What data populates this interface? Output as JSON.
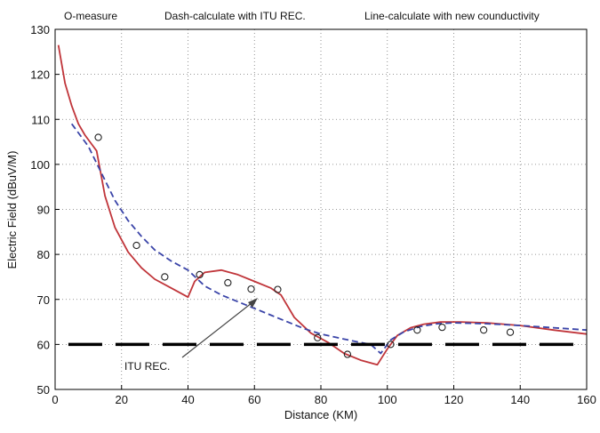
{
  "chart_data": {
    "type": "line",
    "header_notes": [
      "O-measure",
      "Dash-calculate with ITU REC.",
      "Line-calculate with new counductivity"
    ],
    "xlabel": "Distance (KM)",
    "ylabel": "Electric Field (dBuV/M)",
    "xlim": [
      0,
      160
    ],
    "ylim": [
      50,
      130
    ],
    "xticks": [
      0,
      20,
      40,
      60,
      80,
      100,
      120,
      140,
      160
    ],
    "yticks": [
      50,
      60,
      70,
      80,
      90,
      100,
      110,
      120,
      130
    ],
    "grid": "dotted",
    "annotation": {
      "text": "ITU REC.",
      "points_to": [
        77,
        61
      ]
    },
    "series": [
      {
        "style": "solid",
        "color": "#c0353a",
        "x": [
          1,
          3,
          5,
          7,
          9,
          11,
          12.5,
          15,
          18,
          22,
          26,
          30,
          35,
          40,
          42,
          45,
          50,
          55,
          60,
          65,
          68,
          72,
          77,
          82,
          87,
          92,
          97,
          100,
          103,
          107,
          111,
          116,
          122,
          130,
          140,
          150,
          160
        ],
        "y": [
          126.5,
          118,
          113,
          109,
          106.5,
          104.5,
          103,
          93,
          86,
          80.5,
          77,
          74.5,
          72.5,
          70.5,
          74,
          76,
          76.5,
          75.5,
          74,
          72.5,
          71,
          66,
          62.5,
          60.5,
          58,
          56.5,
          55.5,
          59,
          62,
          63.7,
          64.5,
          65,
          65,
          64.8,
          64.2,
          63.2,
          62.3
        ]
      },
      {
        "style": "dashed",
        "color": "#3a44a8",
        "x": [
          5,
          10,
          14,
          18,
          22,
          26,
          30,
          35,
          40,
          45,
          50,
          55,
          60,
          65,
          70,
          75,
          80,
          85,
          90,
          95,
          98,
          101,
          105,
          110,
          115,
          120,
          130,
          140,
          150,
          160
        ],
        "y": [
          109,
          104,
          98,
          92,
          87.5,
          84,
          81,
          78.5,
          76.5,
          73,
          71,
          69.5,
          68,
          66.5,
          65,
          63.5,
          62.3,
          61.5,
          60.7,
          60,
          58,
          61,
          62.8,
          64,
          64.6,
          64.8,
          64.6,
          64.2,
          63.7,
          63.2
        ]
      },
      {
        "style": "markers",
        "marker": "circle",
        "color": "#222222",
        "x": [
          13,
          24.5,
          33,
          43.5,
          52,
          59,
          67,
          79,
          88,
          101,
          109,
          116.5,
          129,
          137
        ],
        "y": [
          106,
          82,
          75,
          75.5,
          73.7,
          72.3,
          72.2,
          61.5,
          57.8,
          60,
          63.2,
          63.8,
          63.2,
          62.7
        ]
      },
      {
        "style": "thick-dash",
        "color": "#000000",
        "x": [
          4,
          156
        ],
        "y": [
          60,
          60
        ]
      }
    ]
  }
}
